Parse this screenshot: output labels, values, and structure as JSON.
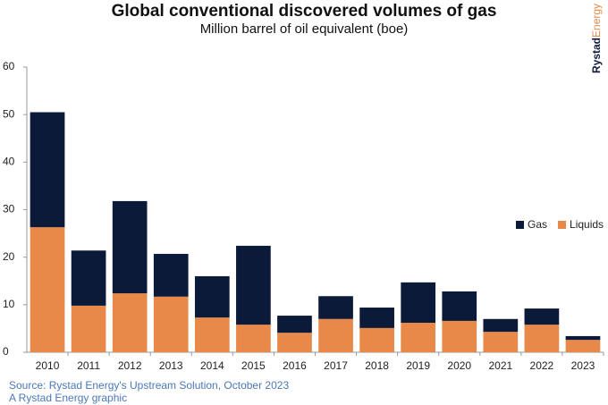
{
  "chart_data": {
    "type": "stacked_bar",
    "title": "Global conventional discovered volumes of gas",
    "subtitle": "Million barrel of oil equivalent (boe)",
    "logo": [
      "Rystad",
      "Energy"
    ],
    "source": [
      "Source: Rystad Energy's Upstream Solution, October 2023",
      "A Rystad Energy graphic"
    ],
    "categories": [
      "2010",
      "2011",
      "2012",
      "2013",
      "2014",
      "2015",
      "2016",
      "2017",
      "2018",
      "2019",
      "2020",
      "2021",
      "2022",
      "2023"
    ],
    "series": [
      {
        "name": "Liquids",
        "color": "#e8894a",
        "values": [
          26.3,
          9.8,
          12.4,
          11.7,
          7.3,
          5.8,
          4.1,
          7.0,
          5.1,
          6.2,
          6.6,
          4.3,
          5.8,
          2.6
        ]
      },
      {
        "name": "Gas",
        "color": "#0c1a3a",
        "values": [
          24.2,
          11.6,
          19.4,
          9.0,
          8.7,
          16.6,
          3.6,
          4.8,
          4.3,
          8.5,
          6.2,
          2.7,
          3.4,
          0.8
        ]
      }
    ],
    "ylim": [
      0,
      60
    ],
    "yticks": [
      0,
      10,
      20,
      30,
      40,
      50,
      60
    ],
    "legend": "right"
  }
}
